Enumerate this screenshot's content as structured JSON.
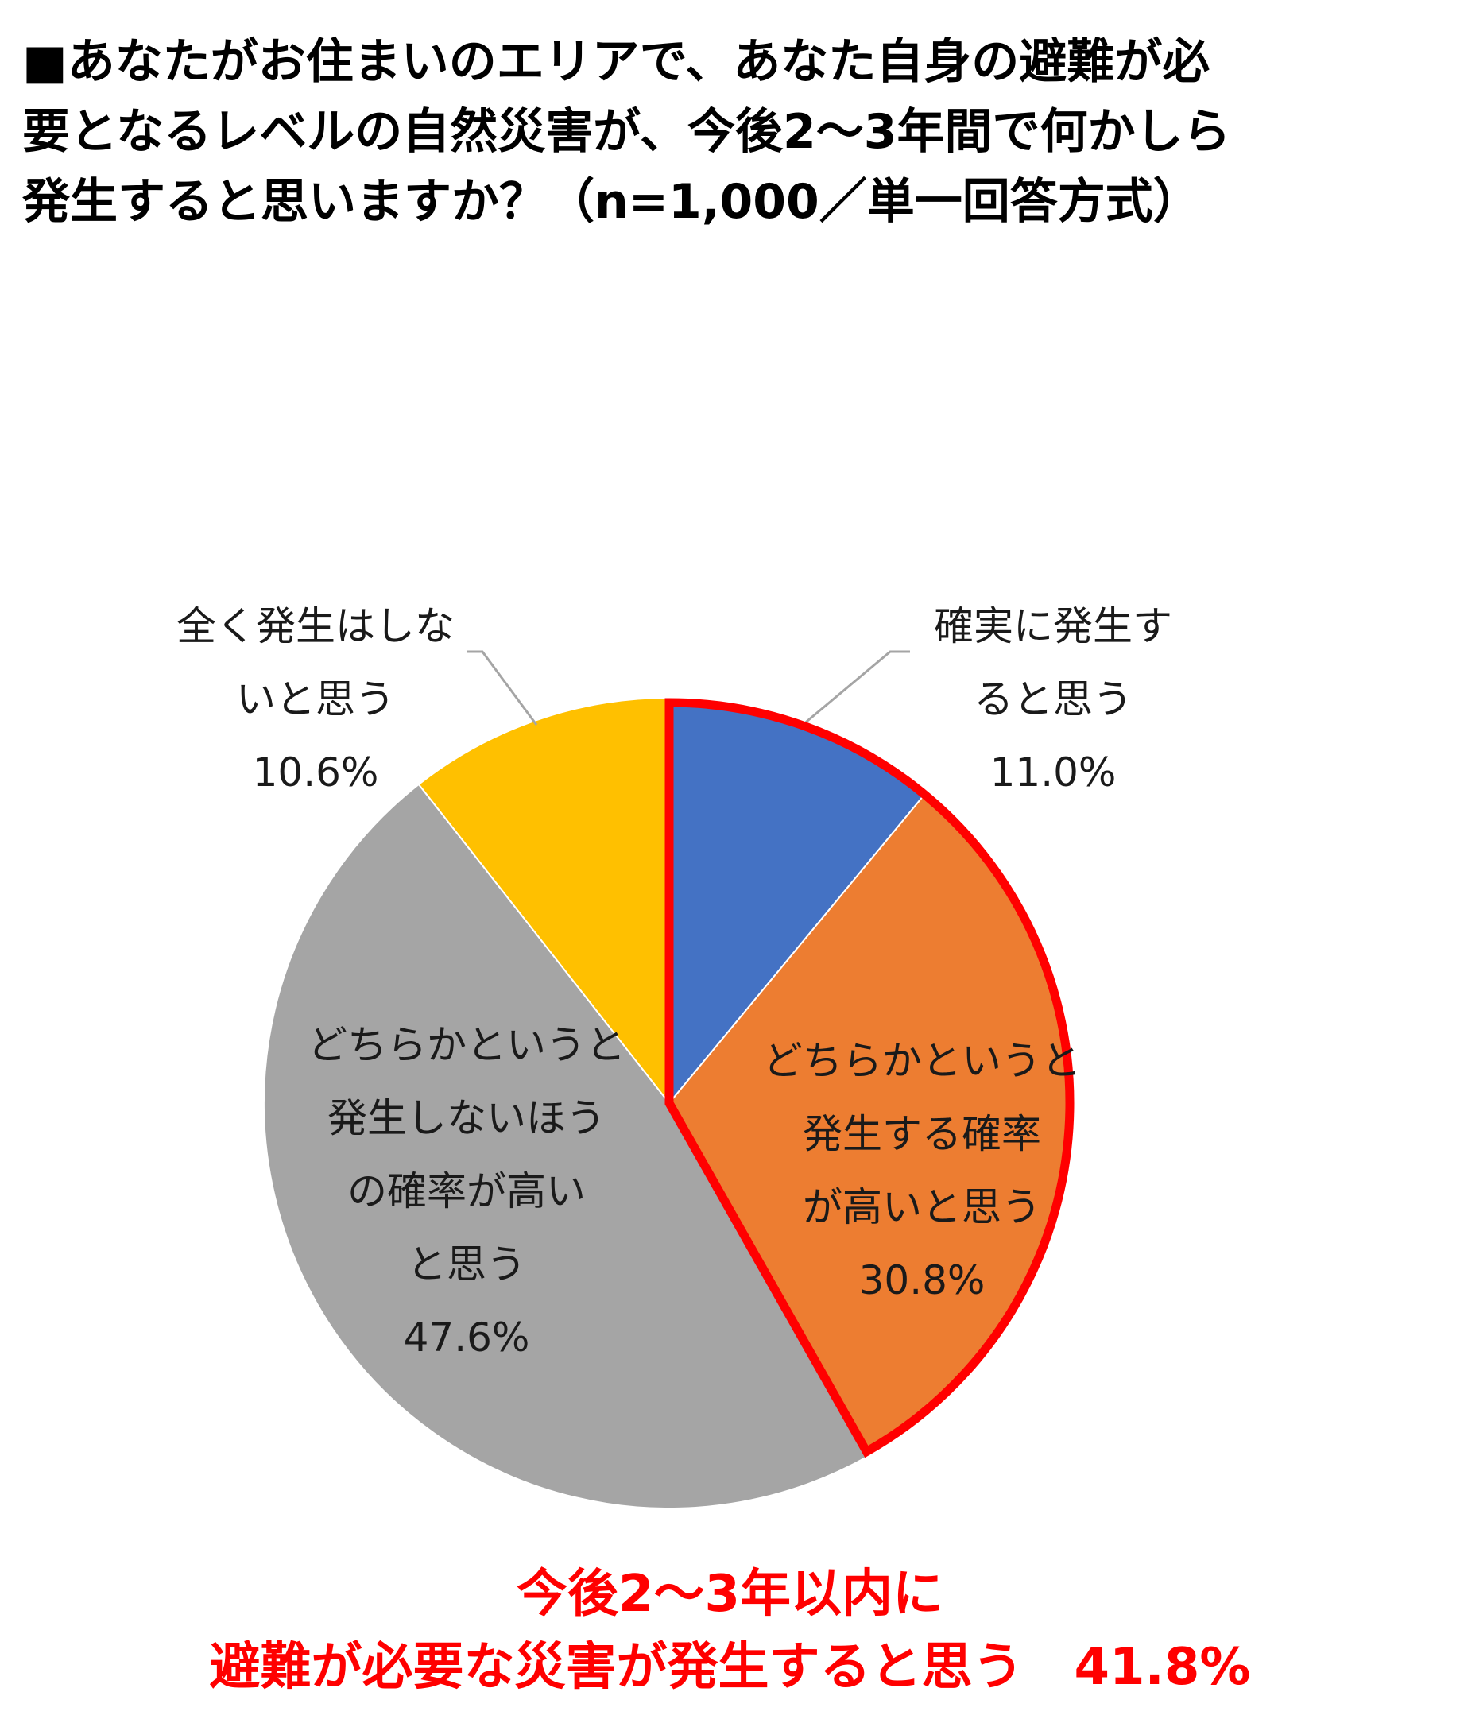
{
  "title": {
    "line1": "■あなたがお住まいのエリアで、あなた自身の避難が必",
    "line2": "要となるレベルの自然災害が、今後2～3年間で何かしら",
    "line3": "発生すると思いますか？（n=1,000／単一回答方式）"
  },
  "chart_data": {
    "type": "pie",
    "title": "■あなたがお住まいのエリアで、あなた自身の避難が必要となるレベルの自然災害が、今後2～3年間で何かしら発生すると思いますか？（n=1,000／単一回答方式）",
    "start_angle": "12 o'clock, clockwise",
    "slices": [
      {
        "label": "確実に発生すると思う",
        "label_lines": [
          "確実に発生す",
          "ると思う"
        ],
        "value": 11.0,
        "value_text": "11.0%",
        "color": "#4472C4"
      },
      {
        "label": "どちらかというと発生する確率が高いと思う",
        "label_lines": [
          "どちらかというと",
          "発生する確率",
          "が高いと思う"
        ],
        "value": 30.8,
        "value_text": "30.8%",
        "color": "#ED7D31"
      },
      {
        "label": "どちらかというと発生しないほうの確率が高いと思う",
        "label_lines": [
          "どちらかというと",
          "発生しないほう",
          "の確率が高い",
          "と思う"
        ],
        "value": 47.6,
        "value_text": "47.6%",
        "color": "#A5A5A5"
      },
      {
        "label": "全く発生はしないと思う",
        "label_lines": [
          "全く発生はしな",
          "いと思う"
        ],
        "value": 10.6,
        "value_text": "10.6%",
        "color": "#FFC000"
      }
    ],
    "highlight": {
      "slices": [
        "確実に発生すると思う",
        "どちらかというと発生する確率が高いと思う"
      ],
      "color": "#FF0000"
    },
    "leader_line_color": "#A5A5A5"
  },
  "footer": {
    "line1": "今後2～3年以内に",
    "line2": "避難が必要な災害が発生すると思う　41.8%",
    "color": "#FF0000"
  }
}
